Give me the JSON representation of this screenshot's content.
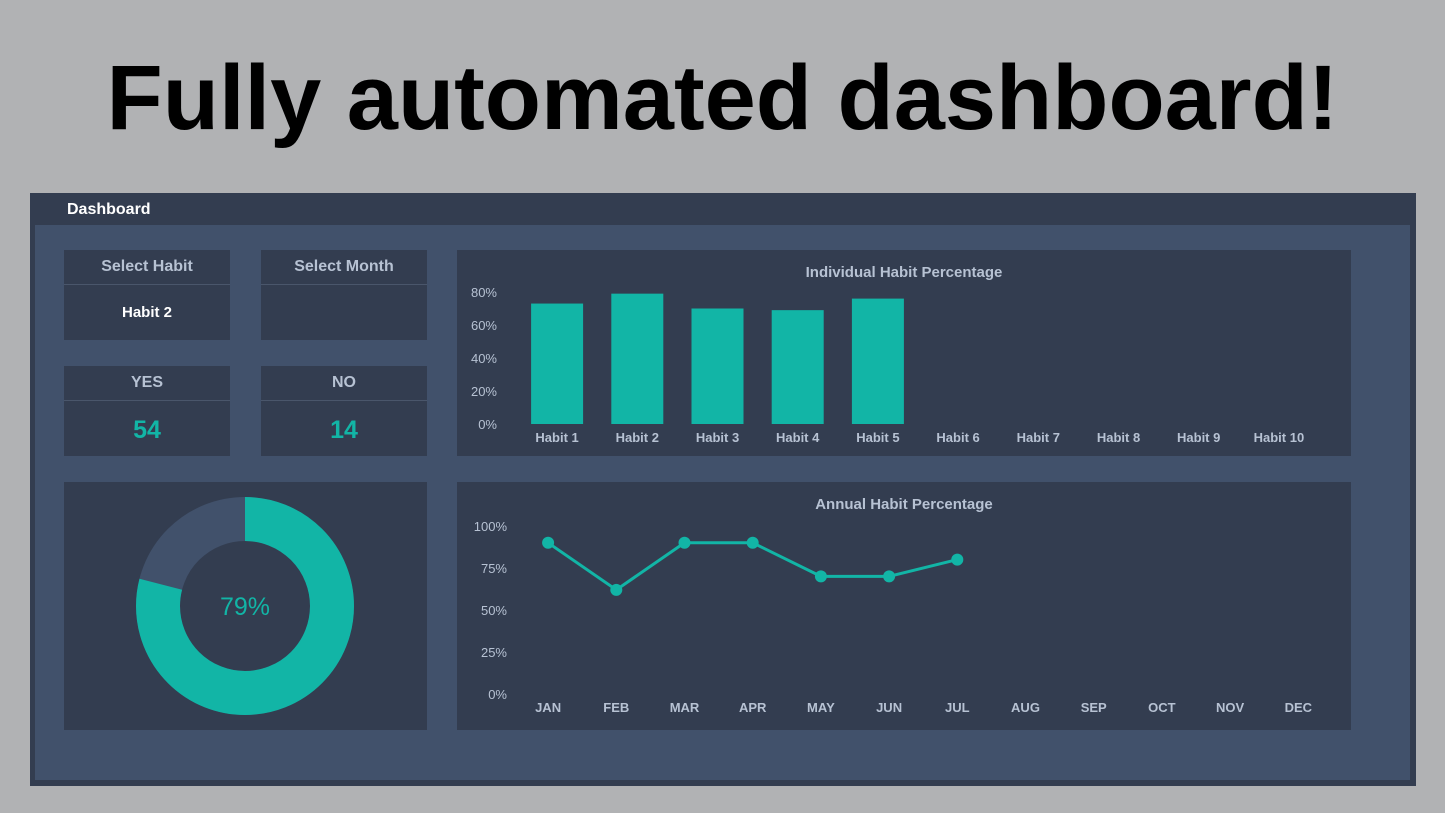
{
  "headline": "Fully automated dashboard!",
  "window": {
    "title": "Dashboard"
  },
  "filters": {
    "habit": {
      "label": "Select Habit",
      "value": "Habit 2"
    },
    "month": {
      "label": "Select Month",
      "value": ""
    }
  },
  "counts": {
    "yes": {
      "label": "YES",
      "value": "54"
    },
    "no": {
      "label": "NO",
      "value": "14"
    }
  },
  "donut": {
    "label": "79%",
    "fraction": 0.79
  },
  "colors": {
    "accent": "#12b5a6",
    "panel": "#333d50",
    "background": "#41516b",
    "remainder": "#41516b"
  },
  "chart_data": [
    {
      "type": "bar",
      "title": "Individual Habit Percentage",
      "categories": [
        "Habit 1",
        "Habit 2",
        "Habit 3",
        "Habit 4",
        "Habit 5",
        "Habit 6",
        "Habit 7",
        "Habit 8",
        "Habit 9",
        "Habit 10"
      ],
      "values": [
        73,
        79,
        70,
        69,
        76,
        null,
        null,
        null,
        null,
        null
      ],
      "ylim": [
        0,
        80
      ],
      "yticks": [
        "80%",
        "60%",
        "40%",
        "20%",
        "0%"
      ],
      "ytick_values": [
        80,
        60,
        40,
        20,
        0
      ]
    },
    {
      "type": "line",
      "title": "Annual Habit Percentage",
      "categories": [
        "JAN",
        "FEB",
        "MAR",
        "APR",
        "MAY",
        "JUN",
        "JUL",
        "AUG",
        "SEP",
        "OCT",
        "NOV",
        "DEC"
      ],
      "values": [
        90,
        62,
        90,
        90,
        70,
        70,
        80,
        null,
        null,
        null,
        null,
        null
      ],
      "ylim": [
        0,
        100
      ],
      "yticks": [
        "100%",
        "75%",
        "50%",
        "25%",
        "0%"
      ],
      "ytick_values": [
        100,
        75,
        50,
        25,
        0
      ]
    }
  ]
}
